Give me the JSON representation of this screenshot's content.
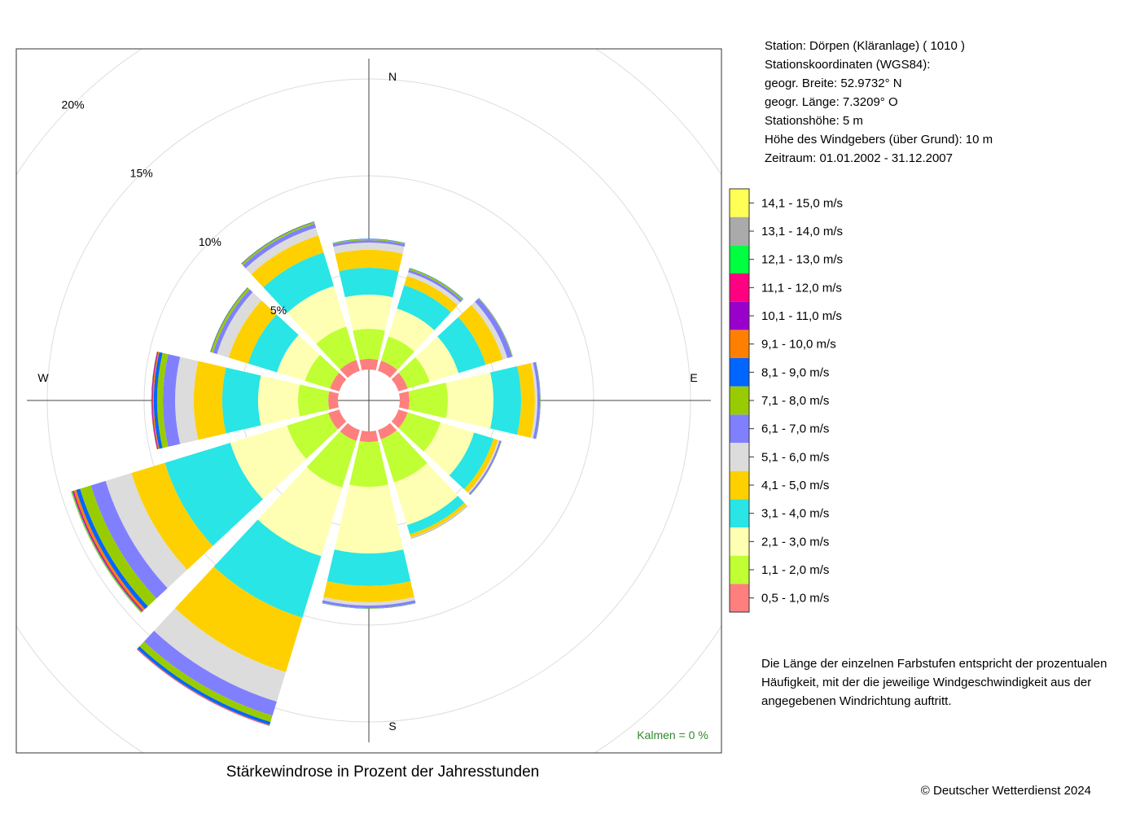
{
  "chart_data": {
    "type": "windrose",
    "title": "Stärkewindrose in Prozent der Jahresstunden",
    "station_info": [
      "Station:  Dörpen (Kläranlage)  ( 1010 )",
      "Stationskoordinaten (WGS84):",
      "geogr. Breite: 52.9732° N",
      "geogr. Länge:   7.3209° O",
      "Stationshöhe: 5 m",
      "Höhe des Windgebers (über Grund): 10 m",
      "Zeitraum: 01.01.2002 - 31.12.2007"
    ],
    "note": [
      "Die Länge der einzelnen Farbstufen entspricht der prozentualen",
      "Häufigkeit, mit der die jeweilige Windgeschwindigkeit aus der",
      "angegebenen Windrichtung auftritt."
    ],
    "calm_label": "Kalmen  =  0 %",
    "copyright": "© Deutscher Wetterdienst  2024",
    "compass_labels": [
      "N",
      "E",
      "S",
      "W"
    ],
    "directions": [
      0,
      30,
      60,
      90,
      120,
      150,
      180,
      210,
      240,
      270,
      300,
      330
    ],
    "rlim": [
      0,
      20
    ],
    "rticks": [
      {
        "value": 5,
        "label": "5%"
      },
      {
        "value": 10,
        "label": "10%"
      },
      {
        "value": 15,
        "label": "15%"
      },
      {
        "value": 20,
        "label": "20%"
      }
    ],
    "grid": true,
    "series": [
      {
        "name": "0,5 - 1,0 m/s",
        "color": "#ff7f7f",
        "values": [
          0.55,
          0.55,
          0.5,
          0.5,
          0.5,
          0.5,
          0.55,
          0.59,
          0.59,
          0.5,
          0.5,
          0.59
        ]
      },
      {
        "name": "1,1 - 2,0 m/s",
        "color": "#bfff33",
        "values": [
          1.55,
          1.3,
          1.18,
          1.98,
          1.77,
          2.32,
          2.31,
          2.52,
          2.23,
          1.56,
          1.35,
          1.8
        ]
      },
      {
        "name": "2,1 - 3,0 m/s",
        "color": "#ffffb3",
        "values": [
          1.77,
          1.51,
          1.56,
          2.35,
          1.81,
          2.31,
          3.44,
          3.7,
          3.06,
          2.06,
          1.51,
          2.19
        ]
      },
      {
        "name": "3,1 - 4,0 m/s",
        "color": "#29e5e5",
        "values": [
          1.38,
          1.26,
          1.47,
          1.43,
          1.05,
          0.5,
          1.68,
          3.32,
          3.53,
          1.85,
          1.56,
          1.81
        ]
      },
      {
        "name": "4,1 - 5,0 m/s",
        "color": "#ffd000",
        "values": [
          0.93,
          0.5,
          0.92,
          0.71,
          0.25,
          0.17,
          0.84,
          2.94,
          1.81,
          1.47,
          1.05,
          0.92
        ]
      },
      {
        "name": "5,1 - 6,0 m/s",
        "color": "#dcdcdc",
        "values": [
          0.37,
          0.21,
          0.25,
          0.13,
          0.08,
          0.04,
          0.17,
          1.59,
          1.39,
          0.96,
          0.63,
          0.42
        ]
      },
      {
        "name": "6,1 - 7,0 m/s",
        "color": "#8080ff",
        "values": [
          0.13,
          0.13,
          0.25,
          0.13,
          0.09,
          0.02,
          0.13,
          0.76,
          0.79,
          0.63,
          0.21,
          0.21
        ]
      },
      {
        "name": "7,1 - 8,0 m/s",
        "color": "#99cc00",
        "values": [
          0.05,
          0.08,
          0.03,
          0.02,
          0.02,
          0.01,
          0.02,
          0.34,
          0.59,
          0.3,
          0.12,
          0.09
        ]
      },
      {
        "name": "8,1 - 9,0 m/s",
        "color": "#0066ff",
        "values": [
          0.02,
          0.02,
          0.01,
          0.01,
          0,
          0,
          0.01,
          0.16,
          0.21,
          0.17,
          0.03,
          0.03
        ]
      },
      {
        "name": "9,1 - 10,0 m/s",
        "color": "#ff8000",
        "values": [
          0,
          0,
          0,
          0,
          0,
          0,
          0,
          0.03,
          0.13,
          0.06,
          0.01,
          0.01
        ]
      },
      {
        "name": "10,1 - 11,0 m/s",
        "color": "#9900cc",
        "values": [
          0,
          0,
          0,
          0,
          0,
          0,
          0,
          0.01,
          0.04,
          0.03,
          0,
          0
        ]
      },
      {
        "name": "11,1 - 12,0 m/s",
        "color": "#ff0080",
        "values": [
          0,
          0,
          0,
          0,
          0,
          0,
          0,
          0.01,
          0.04,
          0.03,
          0,
          0
        ]
      },
      {
        "name": "12,1 - 13,0 m/s",
        "color": "#00ff40",
        "values": [
          0,
          0,
          0,
          0,
          0,
          0,
          0,
          0,
          0.04,
          0.01,
          0,
          0
        ]
      },
      {
        "name": "13,1 - 14,0 m/s",
        "color": "#aaaaaa",
        "values": [
          0,
          0,
          0,
          0,
          0,
          0,
          0,
          0,
          0.03,
          0,
          0,
          0
        ]
      },
      {
        "name": "14,1 - 15,0 m/s",
        "color": "#ffff55",
        "values": [
          0,
          0,
          0,
          0,
          0,
          0,
          0,
          0,
          0.02,
          0,
          0,
          0
        ]
      }
    ]
  }
}
